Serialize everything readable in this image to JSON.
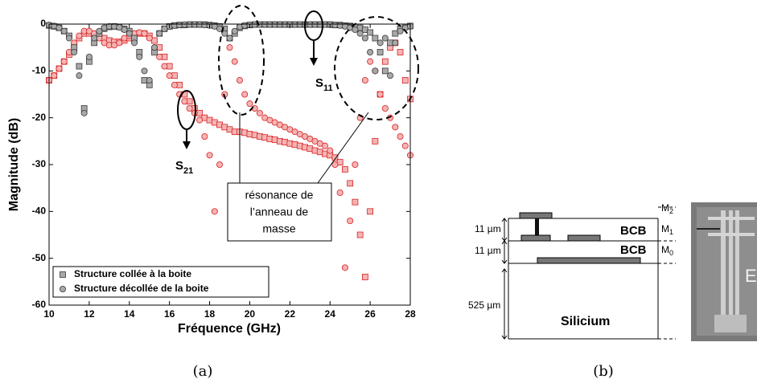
{
  "chart_data": {
    "type": "scatter",
    "panel_label": "(a)",
    "xlabel": "Fréquence (GHz)",
    "ylabel": "Magnitude (dB)",
    "xlim": [
      10,
      28
    ],
    "ylim": [
      -60,
      0
    ],
    "xticks": [
      10,
      12,
      14,
      16,
      18,
      20,
      22,
      24,
      26,
      28
    ],
    "yticks": [
      -60,
      -50,
      -40,
      -30,
      -20,
      -10,
      0
    ],
    "legend": "lower left",
    "annotations": [
      {
        "text": "S",
        "sub": "11"
      },
      {
        "text": "S",
        "sub": "21"
      }
    ],
    "note": [
      "résonance de",
      "l’anneau de",
      "masse"
    ],
    "x": [
      10,
      10.25,
      10.5,
      10.75,
      11,
      11.25,
      11.5,
      11.75,
      12,
      12.25,
      12.5,
      12.75,
      13,
      13.25,
      13.5,
      13.75,
      14,
      14.25,
      14.5,
      14.75,
      15,
      15.25,
      15.5,
      15.75,
      16,
      16.25,
      16.5,
      16.75,
      17,
      17.25,
      17.5,
      17.75,
      18,
      18.25,
      18.5,
      18.75,
      19,
      19.25,
      19.5,
      19.75,
      20,
      20.25,
      20.5,
      20.75,
      21,
      21.25,
      21.5,
      21.75,
      22,
      22.25,
      22.5,
      22.75,
      23,
      23.25,
      23.5,
      23.75,
      24,
      24.25,
      24.5,
      24.75,
      25,
      25.25,
      25.5,
      25.75,
      26,
      26.25,
      26.5,
      26.75,
      27,
      27.25,
      27.5,
      27.75,
      28
    ],
    "series": [
      {
        "name": "Structure collée à la boite",
        "marker": "square",
        "color": "#a8a8a8",
        "stroke": "#3a3a3a",
        "color_s21": "#f5b4b4",
        "stroke_s21": "#d82020",
        "s11": [
          -0.3,
          -0.5,
          -0.8,
          -1.5,
          -2.5,
          -5,
          -9,
          -18,
          -8,
          -4,
          -2,
          -1,
          -0.6,
          -0.5,
          -0.6,
          -1,
          -1.5,
          -3,
          -6,
          -12,
          -13,
          -6,
          -2,
          -1,
          -0.5,
          -0.3,
          -0.2,
          -0.2,
          -0.1,
          -0.1,
          -0.1,
          -0.1,
          -0.2,
          -0.3,
          -0.5,
          -1,
          -3,
          -2,
          -0.8,
          -0.4,
          -0.2,
          -0.1,
          -0.1,
          -0.1,
          -0.1,
          -0.1,
          -0.1,
          -0.1,
          -0.1,
          -0.1,
          -0.1,
          -0.1,
          -0.1,
          -0.1,
          -0.1,
          -0.1,
          -0.1,
          -0.2,
          -0.2,
          -0.3,
          -0.4,
          -0.6,
          -0.8,
          -1.2,
          -1.8,
          -3,
          -6,
          -10,
          -4,
          -2,
          -1,
          -0.6,
          -0.4
        ],
        "s21": [
          -12,
          -11,
          -9.5,
          -8,
          -6.5,
          -4.5,
          -3,
          -2,
          -2,
          -2.2,
          -2.6,
          -3,
          -3.5,
          -3.8,
          -3.8,
          -3.5,
          -3,
          -2.5,
          -2,
          -2,
          -2.5,
          -3.5,
          -5,
          -7,
          -9,
          -11,
          -13,
          -15,
          -16.5,
          -18,
          -19,
          -20,
          -20.5,
          -21,
          -21.5,
          -22,
          -22.5,
          -23,
          -23,
          -23.2,
          -23.5,
          -23.7,
          -24,
          -24.2,
          -24.5,
          -24.7,
          -25,
          -25.2,
          -25.5,
          -25.7,
          -26,
          -26.3,
          -26.6,
          -27,
          -27.3,
          -27.7,
          -28,
          -28.5,
          -29.5,
          -31,
          -34,
          -38,
          -45,
          -54,
          -40,
          -25,
          -15,
          -8,
          -5,
          -4,
          -6,
          -12,
          -16
        ]
      },
      {
        "name": "Structure décollée de la boite",
        "marker": "circle",
        "color": "#a8a8a8",
        "stroke": "#3a3a3a",
        "color_s21": "#f5b4b4",
        "stroke_s21": "#d82020",
        "s11": [
          -0.2,
          -0.4,
          -0.8,
          -1.5,
          -3,
          -6,
          -11,
          -19,
          -7,
          -3,
          -1.5,
          -0.8,
          -0.5,
          -0.5,
          -0.7,
          -1.2,
          -2,
          -4,
          -7,
          -10,
          -12,
          -5,
          -2,
          -1,
          -0.5,
          -0.3,
          -0.2,
          -0.1,
          -0.1,
          -0.1,
          -0.1,
          -0.2,
          -0.3,
          -0.5,
          -1,
          -2,
          -3,
          -1.5,
          -0.6,
          -0.3,
          -0.15,
          -0.1,
          -0.1,
          -0.1,
          -0.1,
          -0.1,
          -0.1,
          -0.1,
          -0.1,
          -0.1,
          -0.1,
          -0.1,
          -0.1,
          -0.1,
          -0.1,
          -0.1,
          -0.1,
          -0.2,
          -0.3,
          -0.5,
          -0.8,
          -1.2,
          -2,
          -3,
          -6,
          -10,
          -4,
          -3,
          -11,
          -4,
          -1.5,
          -0.8,
          -0.5
        ],
        "s21": [
          -12,
          -11,
          -9.5,
          -8,
          -6,
          -4,
          -2.5,
          -1.5,
          -1.5,
          -2,
          -3,
          -4,
          -4.5,
          -4.5,
          -4,
          -3,
          -2.5,
          -2,
          -1.8,
          -2,
          -3,
          -5,
          -7,
          -9,
          -11,
          -13,
          -15,
          -16.5,
          -18,
          -19,
          -20.5,
          -24,
          -28,
          -40,
          -30,
          -15,
          -5,
          -8,
          -12,
          -15,
          -17,
          -18,
          -19,
          -20,
          -20.5,
          -21,
          -21.5,
          -22,
          -22.5,
          -23,
          -23.5,
          -24,
          -24.5,
          -25,
          -25.5,
          -26,
          -27,
          -30,
          -36,
          -52,
          -42,
          -30,
          -20,
          -12,
          -8,
          -10,
          -15,
          -18,
          -20,
          -22,
          -24,
          -26,
          -28
        ]
      }
    ]
  },
  "diagram": {
    "label": "(b)",
    "metals": [
      {
        "text": "M",
        "sub": "2"
      },
      {
        "text": "M",
        "sub": "1"
      },
      {
        "text": "M",
        "sub": "0"
      }
    ],
    "thicknesses": [
      "11 µm",
      "11 µm",
      "525 µm"
    ],
    "layers": [
      "BCB",
      "BCB",
      "Silicium"
    ],
    "photo_text": "E"
  }
}
